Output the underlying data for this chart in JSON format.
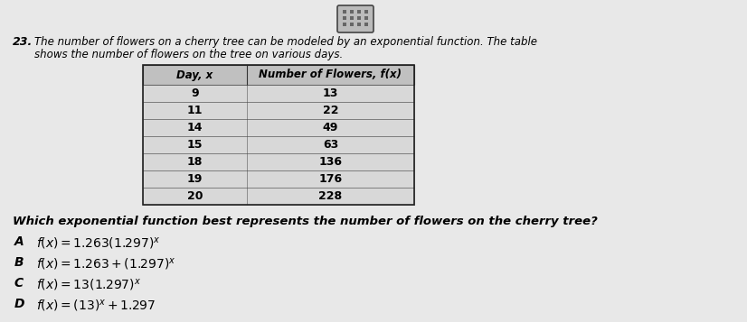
{
  "question_number": "23.",
  "question_text_line1": "The number of flowers on a cherry tree can be modeled by an exponential function. The table",
  "question_text_line2": "shows the number of flowers on the tree on various days.",
  "col1_header": "Day, x",
  "col2_header": "Number of Flowers, f(x)",
  "table_data": [
    [
      9,
      13
    ],
    [
      11,
      22
    ],
    [
      14,
      49
    ],
    [
      15,
      63
    ],
    [
      18,
      136
    ],
    [
      19,
      176
    ],
    [
      20,
      228
    ]
  ],
  "sub_question": "Which exponential function best represents the number of flowers on the cherry tree?",
  "options": [
    {
      "label": "A",
      "text_plain": "f(x) = 1.263(1.297)",
      "exp": "x",
      "suffix": ""
    },
    {
      "label": "B",
      "text_plain": "f(x) = 1.263 + (1.297)",
      "exp": "x",
      "suffix": ""
    },
    {
      "label": "C",
      "text_plain": "f(x) = 13(1.297)",
      "exp": "x",
      "suffix": ""
    },
    {
      "label": "D",
      "text_plain": "f(x) = (13)",
      "exp": "x",
      "suffix": " + 1.297"
    }
  ],
  "bg_color": "#e8e8e8",
  "table_bg": "#c8c8c8",
  "table_header_bg": "#b8b8b8",
  "text_color": "#000000",
  "fig_width": 8.26,
  "fig_height": 3.57,
  "dpi": 100
}
